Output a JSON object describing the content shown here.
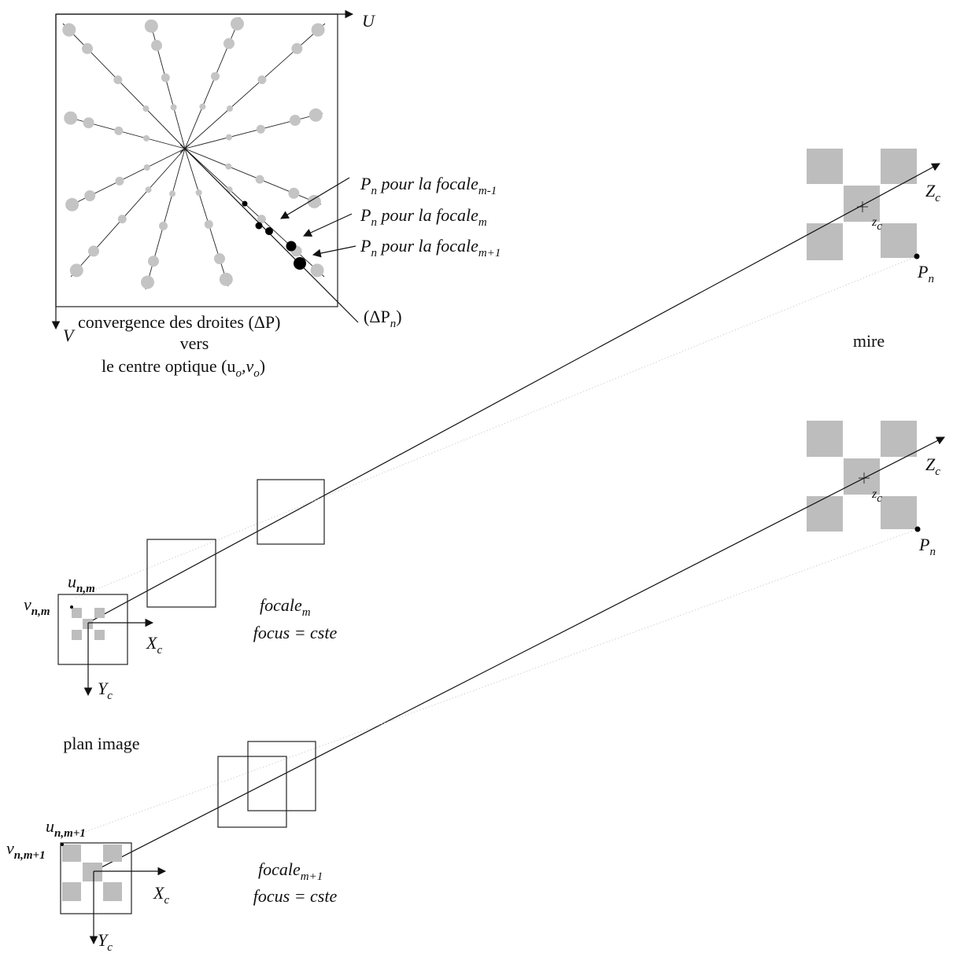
{
  "labels": {
    "axis_u": "U",
    "axis_v": "V",
    "convergence_line1": "convergence des droites (ΔP)",
    "convergence_line2": "vers",
    "convergence_line3_prefix": "le centre optique (u",
    "convergence_sub_o1": "o",
    "convergence_comma_v": ",v",
    "convergence_sub_o2": "o",
    "convergence_close": ")",
    "delta_pn_open": "(ΔP",
    "delta_pn_sub": "n",
    "delta_pn_close": ")",
    "pn_prefix": "P",
    "pn_sub": "n",
    "pn_text": " pour la focale",
    "sub_m_minus_1": "m-1",
    "sub_m": "m",
    "sub_m_plus_1": "m+1",
    "mire": "mire",
    "plan_image": "plan image",
    "z": "Z",
    "c": "c",
    "x": "X",
    "y": "Y",
    "zc_small": "z",
    "u": "u",
    "v": "v",
    "sub_nm": "n,m",
    "sub_nm1": "n,m+1",
    "focale_word": "focale",
    "focus_eq": "focus = cste"
  }
}
